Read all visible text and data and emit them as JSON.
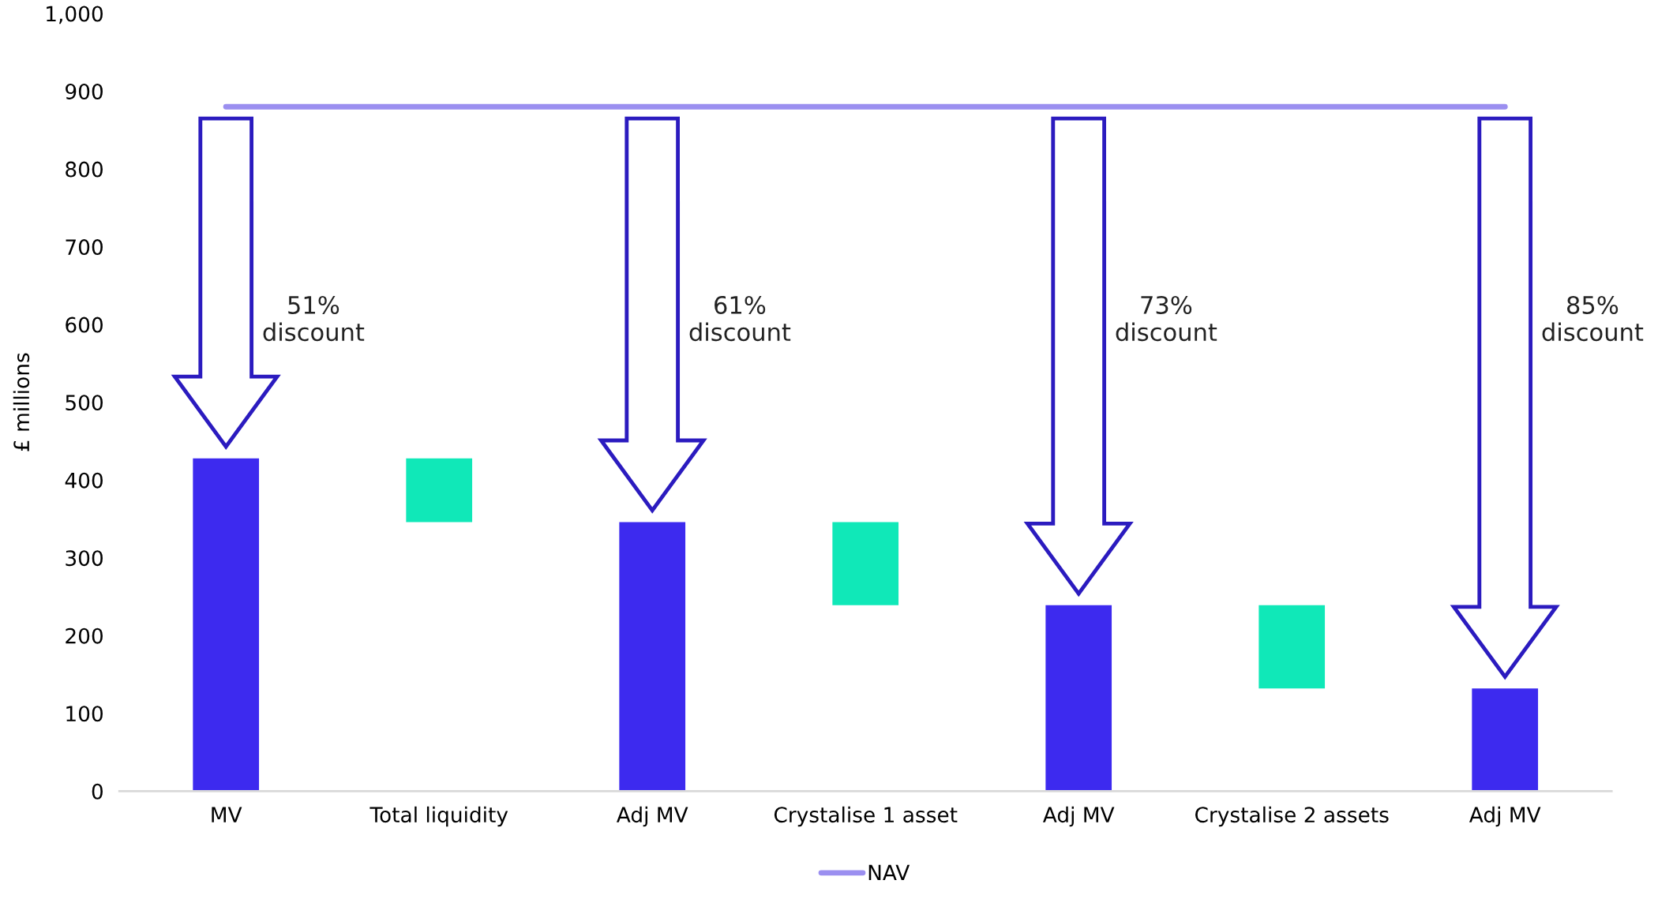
{
  "chart_data": {
    "type": "bar",
    "ylabel": "£ millions",
    "categories": [
      "MV",
      "Total liquidity",
      "Adj MV",
      "Crystalise 1 asset",
      "Adj MV",
      "Crystalise 2 assets",
      "Adj MV"
    ],
    "series": [
      {
        "values": [
          428,
          82,
          346,
          107,
          239,
          107,
          132
        ],
        "base": [
          0,
          346,
          0,
          239,
          0,
          132,
          0
        ],
        "colors": [
          "#3d2aef",
          "#10e8b8",
          "#3d2aef",
          "#10e8b8",
          "#3d2aef",
          "#10e8b8",
          "#3d2aef"
        ]
      },
      {
        "type": "line",
        "name": "NAV",
        "color": "#9b8ff0",
        "values": [
          880,
          880,
          880,
          880,
          880,
          880,
          880
        ]
      }
    ],
    "annotations": [
      "51%\ndiscount",
      "61%\ndiscount",
      "73%\ndiscount",
      "85%\ndiscount"
    ],
    "ylim": [
      0,
      1000
    ],
    "yticks": [
      0,
      100,
      200,
      300,
      400,
      500,
      600,
      700,
      800,
      900,
      {
        "value": 1000,
        "label": "1,000"
      }
    ],
    "grid": false,
    "legend": "bottom"
  }
}
